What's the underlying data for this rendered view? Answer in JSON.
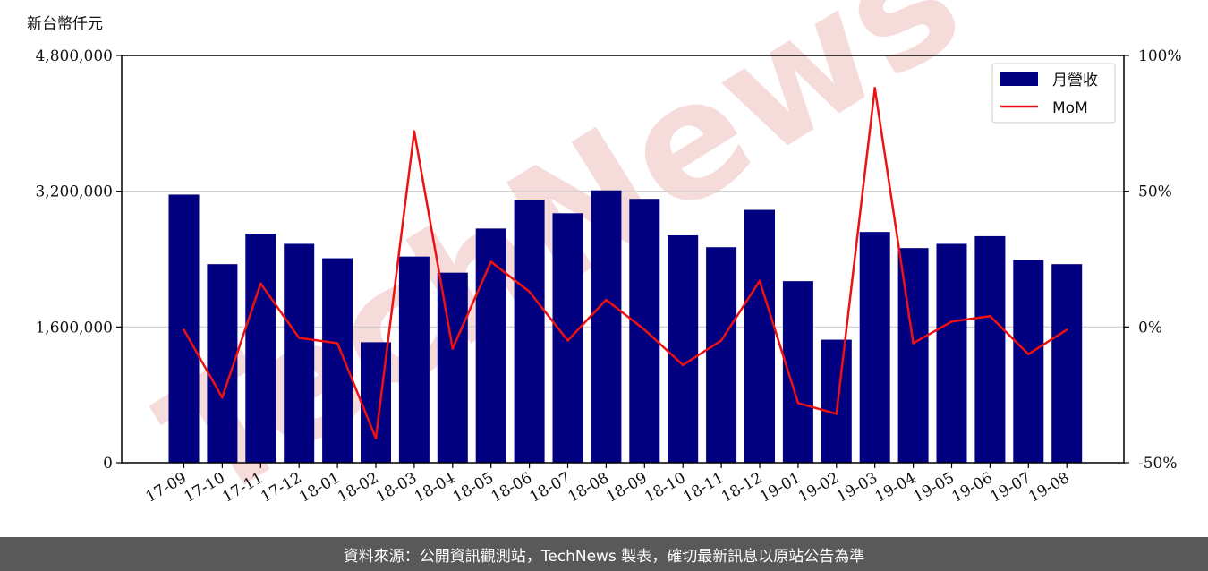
{
  "unit_label": "新台幣仟元",
  "watermark": "TechNews",
  "footer_text": "資料來源：公開資訊觀測站，TechNews 製表，確切最新訊息以原站公告為準",
  "colors": {
    "bar": "#000080",
    "line": "#ee1111",
    "grid": "#cccccc",
    "footer_bg": "#595959",
    "watermark": "#f5d5d5"
  },
  "chart_data": {
    "type": "bar",
    "categories": [
      "17-09",
      "17-10",
      "17-11",
      "17-12",
      "18-01",
      "18-02",
      "18-03",
      "18-04",
      "18-05",
      "18-06",
      "18-07",
      "18-08",
      "18-09",
      "18-10",
      "18-11",
      "18-12",
      "19-01",
      "19-02",
      "19-03",
      "19-04",
      "19-05",
      "19-06",
      "19-07",
      "19-08"
    ],
    "series": [
      {
        "name": "月營收",
        "type": "bar",
        "axis": "left",
        "values": [
          3160000,
          2340000,
          2700000,
          2580000,
          2410000,
          1420000,
          2430000,
          2240000,
          2760000,
          3100000,
          2940000,
          3210000,
          3110000,
          2680000,
          2540000,
          2980000,
          2140000,
          1450000,
          2720000,
          2530000,
          2580000,
          2670000,
          2390000,
          2340000
        ]
      },
      {
        "name": "MoM",
        "type": "line",
        "axis": "right",
        "values": [
          -1,
          -26,
          16,
          -4,
          -6,
          -41,
          72,
          -8,
          24,
          13,
          -5,
          10,
          -1,
          -14,
          -5,
          17,
          -28,
          -32,
          88,
          -6,
          2,
          4,
          -10,
          -1
        ]
      }
    ],
    "left_axis": {
      "ylim": [
        0,
        4800000
      ],
      "ticks": [
        "0",
        "1,600,000",
        "3,200,000",
        "4,800,000"
      ],
      "tick_values": [
        0,
        1600000,
        3200000,
        4800000
      ]
    },
    "right_axis": {
      "ylim": [
        -50,
        100
      ],
      "ticks": [
        "-50%",
        "0%",
        "50%",
        "100%"
      ],
      "tick_values": [
        -50,
        0,
        50,
        100
      ]
    },
    "grid": "horizontal",
    "legend_position": "top-right"
  }
}
